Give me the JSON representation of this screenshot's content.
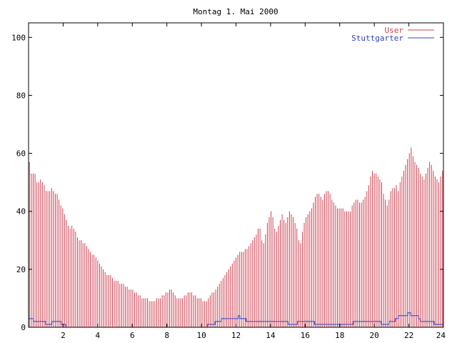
{
  "chart_data": {
    "type": "bar",
    "title": "Montag 1. Mai 2000",
    "xlabel": "",
    "ylabel": "",
    "xlim": [
      0,
      24
    ],
    "ylim": [
      0,
      105
    ],
    "xticks": [
      2,
      4,
      6,
      8,
      10,
      12,
      14,
      16,
      18,
      20,
      22,
      24
    ],
    "yticks": [
      0,
      20,
      40,
      60,
      80,
      100
    ],
    "grid": false,
    "legend_position": "top-right",
    "sample_interval_hours": 0.0833,
    "series": [
      {
        "name": "User",
        "style": "impulses",
        "color": "#d04050",
        "values": [
          57,
          53,
          53,
          53,
          50,
          50,
          51,
          50,
          49,
          47,
          47,
          47,
          48,
          47,
          46,
          46,
          44,
          42,
          41,
          39,
          37,
          35,
          34,
          35,
          34,
          33,
          31,
          30,
          30,
          29,
          29,
          28,
          27,
          26,
          25,
          25,
          24,
          23,
          22,
          21,
          20,
          19,
          18,
          18,
          18,
          17,
          16,
          16,
          16,
          15,
          15,
          15,
          14,
          14,
          13,
          13,
          13,
          12,
          12,
          11,
          11,
          10,
          10,
          10,
          10,
          9,
          9,
          9,
          9,
          10,
          10,
          10,
          11,
          11,
          12,
          12,
          13,
          13,
          12,
          11,
          10,
          10,
          10,
          10,
          11,
          11,
          12,
          12,
          12,
          11,
          11,
          10,
          10,
          10,
          9,
          9,
          9,
          10,
          11,
          12,
          12,
          13,
          14,
          15,
          16,
          17,
          18,
          19,
          20,
          21,
          22,
          23,
          24,
          25,
          26,
          26,
          26,
          27,
          27,
          28,
          29,
          30,
          31,
          32,
          34,
          34,
          30,
          29,
          32,
          36,
          38,
          40,
          38,
          34,
          33,
          35,
          37,
          39,
          37,
          36,
          38,
          40,
          39,
          38,
          36,
          34,
          30,
          29,
          33,
          36,
          38,
          39,
          40,
          41,
          43,
          45,
          46,
          46,
          45,
          44,
          46,
          47,
          47,
          46,
          44,
          43,
          42,
          41,
          41,
          41,
          41,
          40,
          40,
          40,
          40,
          42,
          43,
          44,
          44,
          43,
          43,
          44,
          45,
          47,
          49,
          52,
          54,
          53,
          53,
          52,
          51,
          50,
          46,
          44,
          42,
          44,
          47,
          48,
          48,
          49,
          47,
          50,
          52,
          54,
          56,
          58,
          60,
          62,
          59,
          57,
          56,
          55,
          53,
          52,
          51,
          53,
          55,
          57,
          56,
          54,
          52,
          51,
          50,
          52,
          54
        ]
      },
      {
        "name": "Stuttgarter",
        "style": "steps",
        "color": "#3040c0",
        "values": [
          3,
          3,
          3,
          2,
          2,
          2,
          2,
          2,
          2,
          2,
          2,
          1,
          1,
          1,
          1,
          2,
          2,
          2,
          2,
          2,
          2,
          1,
          1,
          1,
          0,
          0,
          0,
          0,
          0,
          0,
          0,
          0,
          0,
          0,
          0,
          0,
          0,
          0,
          0,
          0,
          0,
          0,
          0,
          0,
          0,
          0,
          0,
          0,
          0,
          0,
          0,
          0,
          0,
          0,
          0,
          0,
          0,
          0,
          0,
          0,
          0,
          0,
          0,
          0,
          0,
          0,
          0,
          0,
          0,
          0,
          0,
          0,
          0,
          0,
          0,
          0,
          0,
          0,
          0,
          0,
          0,
          0,
          0,
          0,
          0,
          0,
          0,
          0,
          0,
          0,
          0,
          0,
          0,
          0,
          0,
          0,
          0,
          0,
          0,
          0,
          0,
          0,
          0,
          0,
          0,
          0,
          0,
          0,
          0,
          0,
          0,
          0,
          0,
          0,
          0,
          1,
          1,
          1,
          1,
          1,
          2,
          2,
          2,
          2,
          3,
          3,
          3,
          3,
          3,
          3,
          3,
          3,
          3,
          3,
          3,
          4,
          3,
          3,
          3,
          3,
          2,
          2,
          2,
          2,
          2,
          2,
          2,
          2,
          2,
          2,
          2,
          2,
          2,
          2,
          2,
          2,
          2,
          2,
          2,
          2,
          2,
          2,
          2,
          2,
          2,
          2,
          2,
          1,
          1,
          1,
          1,
          1,
          1,
          2,
          2,
          2,
          2,
          2,
          2,
          2,
          2,
          2,
          2,
          2,
          1,
          1,
          1,
          1,
          1,
          1,
          1,
          1,
          1,
          1,
          1,
          1,
          1,
          1,
          1,
          1,
          1,
          1,
          1,
          1,
          1,
          1,
          1,
          1,
          1,
          2,
          2,
          2,
          2,
          2,
          2,
          2,
          2,
          2,
          2,
          2,
          2,
          2,
          2,
          2,
          2,
          2,
          2,
          1,
          1,
          1,
          1,
          1,
          2,
          2,
          2,
          2,
          3,
          3,
          4,
          4,
          4,
          4,
          4,
          4,
          5,
          5,
          4,
          4,
          4,
          4,
          4,
          3,
          2,
          2,
          2,
          2,
          2,
          2,
          2,
          2,
          2,
          1,
          1,
          1,
          1,
          1,
          1
        ]
      }
    ]
  }
}
